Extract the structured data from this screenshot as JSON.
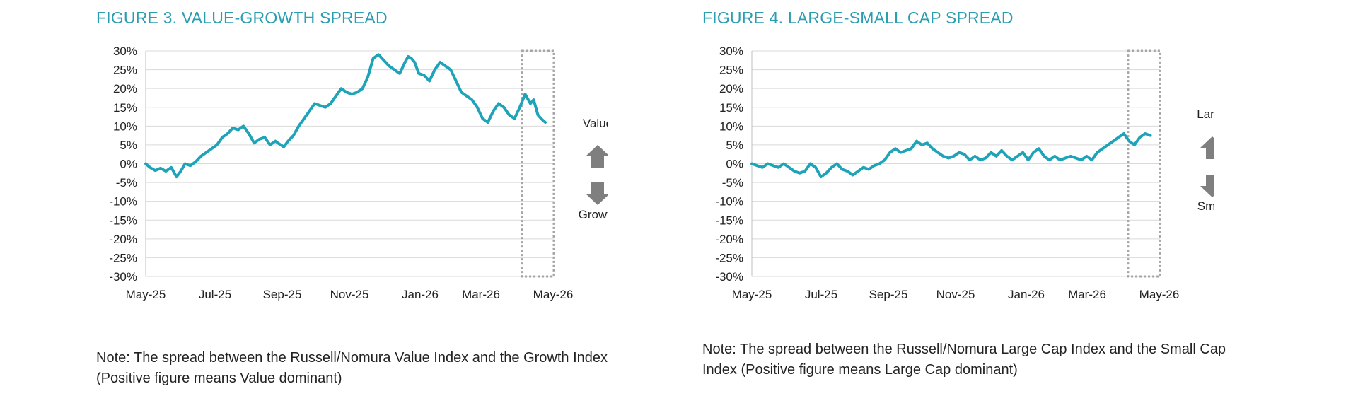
{
  "chart_data": [
    {
      "type": "line",
      "title": "FIGURE 3. VALUE-GROWTH SPREAD",
      "xlabel": "",
      "ylabel": "",
      "ylim": [
        -30,
        30
      ],
      "xlim": [
        "2025-05-01",
        "2026-05-20"
      ],
      "x_ticks": [
        "May-25",
        "Jul-25",
        "Sep-25",
        "Nov-25",
        "Jan-26",
        "Mar-26",
        "May-26"
      ],
      "y_ticks": [
        "30%",
        "25%",
        "20%",
        "15%",
        "10%",
        "5%",
        "0%",
        "-5%",
        "-10%",
        "-15%",
        "-20%",
        "-25%",
        "-30%"
      ],
      "grid": true,
      "color": "#1ea3b8",
      "highlight_box": [
        "2026-04-20",
        "2026-05-20"
      ],
      "up_label": "Value",
      "down_label": "Growth",
      "note": "Note: The spread between the Russell/Nomura Value Index and the Growth Index (Positive figure means Value dominant)",
      "series": [
        {
          "x": [
            "2025-05-01",
            "2025-05-05",
            "2025-05-10",
            "2025-05-15",
            "2025-05-20",
            "2025-05-25",
            "2025-05-30",
            "2025-06-03",
            "2025-06-07",
            "2025-06-12",
            "2025-06-17",
            "2025-06-22",
            "2025-06-27",
            "2025-07-02",
            "2025-07-07",
            "2025-07-12",
            "2025-07-17",
            "2025-07-22",
            "2025-07-27",
            "2025-08-01",
            "2025-08-06",
            "2025-08-11",
            "2025-08-16",
            "2025-08-21",
            "2025-08-26",
            "2025-08-31",
            "2025-09-05",
            "2025-09-08",
            "2025-09-12",
            "2025-09-17",
            "2025-09-22",
            "2025-09-27",
            "2025-10-02",
            "2025-10-07",
            "2025-10-12",
            "2025-10-17",
            "2025-10-22",
            "2025-10-27",
            "2025-11-01",
            "2025-11-06",
            "2025-11-11",
            "2025-11-16",
            "2025-11-21",
            "2025-11-26",
            "2025-12-01",
            "2025-12-06",
            "2025-12-11",
            "2025-12-16",
            "2025-12-21",
            "2025-12-26",
            "2025-12-31",
            "2026-01-03",
            "2026-01-06",
            "2026-01-09",
            "2026-01-13",
            "2026-01-18",
            "2026-01-23",
            "2026-01-28",
            "2026-02-02",
            "2026-02-07",
            "2026-02-12",
            "2026-02-17",
            "2026-02-22",
            "2026-02-27",
            "2026-03-04",
            "2026-03-09",
            "2026-03-14",
            "2026-03-19",
            "2026-03-24",
            "2026-03-29",
            "2026-04-03",
            "2026-04-08",
            "2026-04-13",
            "2026-04-18",
            "2026-04-23",
            "2026-04-28",
            "2026-05-01",
            "2026-05-05",
            "2026-05-08",
            "2026-05-12"
          ],
          "values": [
            0,
            -1,
            -1.8,
            -1.2,
            -2,
            -1,
            -3.5,
            -2,
            0,
            -0.5,
            0.5,
            2,
            3,
            4,
            5,
            7,
            8,
            9.5,
            9,
            10,
            8,
            5.5,
            6.5,
            7,
            5,
            6,
            5,
            4.5,
            6,
            7.5,
            10,
            12,
            14,
            16,
            15.5,
            15,
            16,
            18,
            20,
            19,
            18.5,
            19,
            20,
            23,
            28,
            29,
            27.5,
            26,
            25,
            24,
            27,
            28.5,
            28,
            27,
            24,
            23.5,
            22,
            25,
            27,
            26,
            25,
            22,
            19,
            18,
            17,
            15,
            12,
            11,
            14,
            16,
            15,
            13,
            12,
            15,
            18.5,
            16,
            17,
            13,
            12,
            11
          ]
        }
      ]
    },
    {
      "type": "line",
      "title": "FIGURE 4. LARGE-SMALL CAP SPREAD",
      "xlabel": "",
      "ylabel": "",
      "ylim": [
        -30,
        30
      ],
      "xlim": [
        "2025-05-01",
        "2026-05-20"
      ],
      "x_ticks": [
        "May-25",
        "Jul-25",
        "Sep-25",
        "Nov-25",
        "Jan-26",
        "Mar-26",
        "May-26"
      ],
      "y_ticks": [
        "30%",
        "25%",
        "20%",
        "15%",
        "10%",
        "5%",
        "0%",
        "-5%",
        "-10%",
        "-15%",
        "-20%",
        "-25%",
        "-30%"
      ],
      "grid": true,
      "color": "#1ea3b8",
      "highlight_box": [
        "2026-04-20",
        "2026-05-20"
      ],
      "up_label": "Large",
      "down_label": "Small",
      "note": "Note: The spread between the Russell/Nomura Large Cap Index and the Small Cap Index (Positive figure means Large Cap dominant)",
      "series": [
        {
          "x": [
            "2025-05-01",
            "2025-05-06",
            "2025-05-11",
            "2025-05-16",
            "2025-05-21",
            "2025-05-26",
            "2025-05-31",
            "2025-06-05",
            "2025-06-10",
            "2025-06-15",
            "2025-06-20",
            "2025-06-25",
            "2025-06-30",
            "2025-07-05",
            "2025-07-10",
            "2025-07-15",
            "2025-07-20",
            "2025-07-25",
            "2025-07-30",
            "2025-08-04",
            "2025-08-09",
            "2025-08-14",
            "2025-08-19",
            "2025-08-24",
            "2025-08-29",
            "2025-09-03",
            "2025-09-08",
            "2025-09-13",
            "2025-09-18",
            "2025-09-23",
            "2025-09-28",
            "2025-10-03",
            "2025-10-08",
            "2025-10-13",
            "2025-10-18",
            "2025-10-23",
            "2025-10-28",
            "2025-11-02",
            "2025-11-07",
            "2025-11-12",
            "2025-11-17",
            "2025-11-22",
            "2025-11-27",
            "2025-12-02",
            "2025-12-07",
            "2025-12-12",
            "2025-12-17",
            "2025-12-22",
            "2025-12-27",
            "2026-01-01",
            "2026-01-06",
            "2026-01-11",
            "2026-01-16",
            "2026-01-21",
            "2026-01-26",
            "2026-01-31",
            "2026-02-05",
            "2026-02-10",
            "2026-02-15",
            "2026-02-20",
            "2026-02-25",
            "2026-03-02",
            "2026-03-07",
            "2026-03-12",
            "2026-03-17",
            "2026-03-22",
            "2026-03-27",
            "2026-04-01",
            "2026-04-06",
            "2026-04-11",
            "2026-04-16",
            "2026-04-21",
            "2026-04-26",
            "2026-05-01",
            "2026-05-06",
            "2026-05-11"
          ],
          "values": [
            0,
            -0.5,
            -1,
            0,
            -0.5,
            -1,
            0,
            -1,
            -2,
            -2.5,
            -2,
            0,
            -1,
            -3.5,
            -2.5,
            -1,
            0,
            -1.5,
            -2,
            -3,
            -2,
            -1,
            -1.5,
            -0.5,
            0,
            1,
            3,
            4,
            3,
            3.5,
            4,
            6,
            5,
            5.5,
            4,
            3,
            2,
            1.5,
            2,
            3,
            2.5,
            1,
            2,
            1,
            1.5,
            3,
            2,
            3.5,
            2,
            1,
            2,
            3,
            1,
            3,
            4,
            2,
            1,
            2,
            1,
            1.5,
            2,
            1.5,
            1,
            2,
            1,
            3,
            4,
            5,
            6,
            7,
            8,
            6,
            5,
            7,
            8,
            7.5
          ]
        }
      ]
    }
  ]
}
